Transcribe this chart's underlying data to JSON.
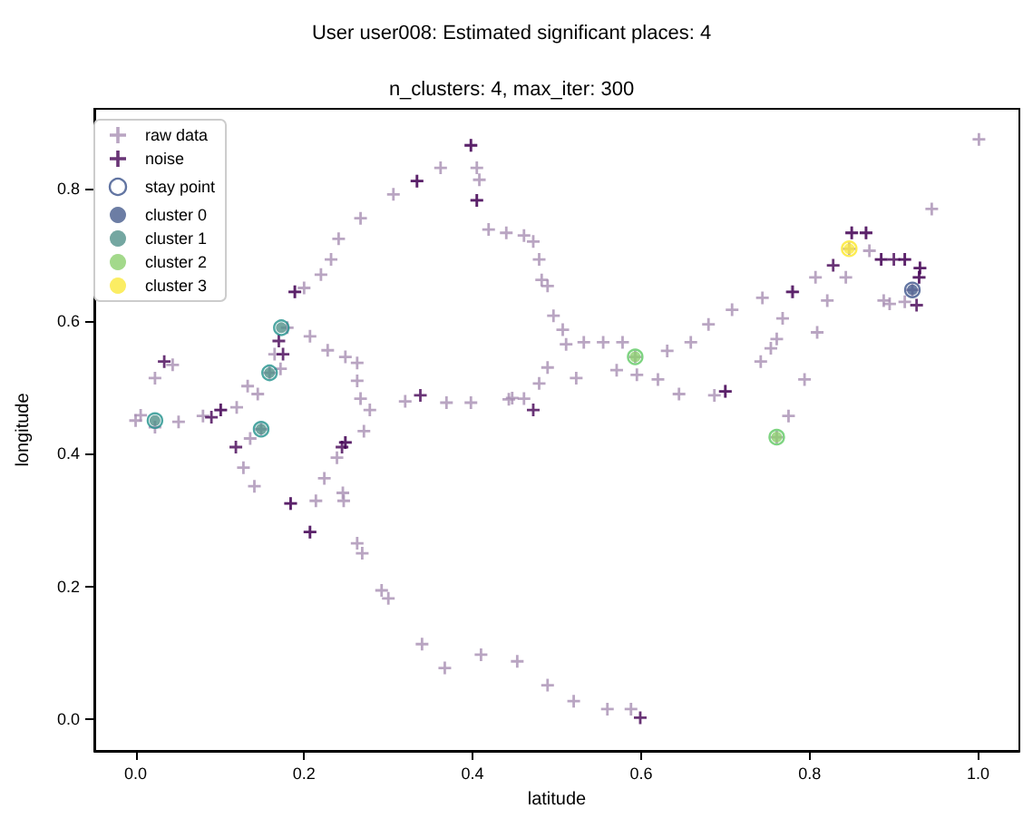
{
  "chart_data": {
    "type": "scatter",
    "title": "User user008: Estimated significant places: 4",
    "subtitle": "n_clusters: 4, max_iter: 300",
    "xlabel": "latitude",
    "ylabel": "longitude",
    "xlim": [
      -0.049,
      1.049
    ],
    "ylim": [
      -0.048,
      0.92
    ],
    "xticks": [
      {
        "value": 0,
        "label": "0.0"
      },
      {
        "value": 0.2,
        "label": "0.2"
      },
      {
        "value": 0.4,
        "label": "0.4"
      },
      {
        "value": 0.6,
        "label": "0.6"
      },
      {
        "value": 0.8,
        "label": "0.8"
      },
      {
        "value": 1,
        "label": "1.0"
      }
    ],
    "yticks": [
      {
        "value": 0,
        "label": "0.0"
      },
      {
        "value": 0.2,
        "label": "0.2"
      },
      {
        "value": 0.4,
        "label": "0.4"
      },
      {
        "value": 0.6,
        "label": "0.6"
      },
      {
        "value": 0.8,
        "label": "0.8"
      }
    ],
    "grid": false,
    "legend": "top left",
    "series": [
      {
        "name": "raw data",
        "color": "#a88fb3",
        "marker": "cross",
        "x": [
          0.0,
          0.006,
          0.023,
          0.051,
          0.08,
          0.101,
          0.12,
          0.133,
          0.145,
          0.159,
          0.165,
          0.172,
          0.18,
          0.189,
          0.2,
          0.22,
          0.232,
          0.241,
          0.267,
          0.306,
          0.334,
          0.362,
          0.398,
          0.405,
          0.408,
          0.405,
          0.419,
          0.44,
          0.461,
          0.472,
          0.479,
          0.482,
          0.489,
          0.496,
          0.507,
          0.511,
          0.532,
          0.555,
          0.578,
          0.593,
          0.631,
          0.659,
          0.68,
          0.708,
          0.744,
          0.779,
          0.807,
          0.847,
          0.85,
          0.867,
          0.871,
          0.885,
          0.913,
          0.931,
          0.93,
          0.922,
          1.001,
          0.945,
          0.888,
          0.895,
          0.913,
          0.843,
          0.821,
          0.809,
          0.768,
          0.761,
          0.754,
          0.742,
          0.794,
          0.775,
          0.761,
          0.7,
          0.687,
          0.645,
          0.62,
          0.595,
          0.571,
          0.523,
          0.489,
          0.479,
          0.461,
          0.447,
          0.443,
          0.398,
          0.369,
          0.32,
          0.278,
          0.267,
          0.263,
          0.263,
          0.249,
          0.228,
          0.207,
          0.271,
          0.249,
          0.136,
          0.149,
          0.128,
          0.141,
          0.184,
          0.207,
          0.214,
          0.224,
          0.239,
          0.247,
          0.246,
          0.263,
          0.269,
          0.292,
          0.3,
          0.34,
          0.367,
          0.41,
          0.453,
          0.489,
          0.52,
          0.56,
          0.588,
          0.023,
          0.044
        ],
        "values": [
          0.45,
          0.458,
          0.44,
          0.448,
          0.457,
          0.466,
          0.47,
          0.502,
          0.49,
          0.522,
          0.55,
          0.528,
          0.59,
          0.644,
          0.65,
          0.67,
          0.693,
          0.724,
          0.755,
          0.791,
          0.811,
          0.831,
          0.865,
          0.831,
          0.813,
          0.782,
          0.738,
          0.733,
          0.729,
          0.72,
          0.693,
          0.662,
          0.653,
          0.608,
          0.587,
          0.565,
          0.568,
          0.568,
          0.568,
          0.546,
          0.555,
          0.568,
          0.595,
          0.617,
          0.635,
          0.644,
          0.666,
          0.709,
          0.733,
          0.733,
          0.706,
          0.693,
          0.693,
          0.68,
          0.666,
          0.647,
          0.874,
          0.769,
          0.631,
          0.626,
          0.629,
          0.666,
          0.631,
          0.583,
          0.604,
          0.573,
          0.559,
          0.539,
          0.512,
          0.457,
          0.425,
          0.494,
          0.488,
          0.49,
          0.512,
          0.519,
          0.526,
          0.514,
          0.53,
          0.506,
          0.483,
          0.484,
          0.482,
          0.477,
          0.477,
          0.479,
          0.466,
          0.483,
          0.51,
          0.537,
          0.546,
          0.556,
          0.577,
          0.434,
          0.417,
          0.423,
          0.437,
          0.379,
          0.351,
          0.325,
          0.282,
          0.329,
          0.363,
          0.394,
          0.329,
          0.341,
          0.265,
          0.25,
          0.194,
          0.182,
          0.113,
          0.077,
          0.097,
          0.087,
          0.051,
          0.027,
          0.015,
          0.015,
          0.514,
          0.534
        ]
      },
      {
        "name": "noise",
        "color": "#440154",
        "marker": "cross",
        "x": [
          0.034,
          0.119,
          0.175,
          0.17,
          0.189,
          0.334,
          0.398,
          0.405,
          0.249,
          0.245,
          0.338,
          0.472,
          0.184,
          0.207,
          0.599,
          0.7,
          0.927,
          0.85,
          0.867,
          0.885,
          0.9,
          0.913,
          0.931,
          0.93,
          0.78,
          0.828,
          0.09,
          0.101
        ],
        "values": [
          0.539,
          0.41,
          0.55,
          0.57,
          0.644,
          0.811,
          0.865,
          0.782,
          0.417,
          0.41,
          0.488,
          0.466,
          0.325,
          0.282,
          0.002,
          0.494,
          0.624,
          0.733,
          0.733,
          0.693,
          0.693,
          0.693,
          0.68,
          0.666,
          0.644,
          0.684,
          0.455,
          0.466
        ]
      },
      {
        "name": "stay point",
        "marker": "circle",
        "colors": [
          "#3b528b",
          "#21918c",
          "#21918c",
          "#21918c",
          "#21918c",
          "#5ec962",
          "#5ec962",
          "#fde725"
        ],
        "x": [
          0.922,
          0.023,
          0.173,
          0.159,
          0.149,
          0.593,
          0.761,
          0.847
        ],
        "values": [
          0.647,
          0.45,
          0.59,
          0.522,
          0.437,
          0.546,
          0.425,
          0.709
        ]
      },
      {
        "name": "cluster 0",
        "color": "#475c8d",
        "marker": "circle",
        "x": [
          0.922
        ],
        "values": [
          0.647
        ]
      },
      {
        "name": "cluster 1",
        "color": "#519189",
        "marker": "circle",
        "x": [
          0.023,
          0.173,
          0.159,
          0.149
        ],
        "values": [
          0.45,
          0.59,
          0.522,
          0.437
        ]
      },
      {
        "name": "cluster 2",
        "color": "#8ccf6e",
        "marker": "circle",
        "x": [
          0.593,
          0.761
        ],
        "values": [
          0.546,
          0.425
        ]
      },
      {
        "name": "cluster 3",
        "color": "#fae83c",
        "marker": "circle",
        "x": [
          0.847
        ],
        "values": [
          0.709
        ]
      }
    ]
  }
}
